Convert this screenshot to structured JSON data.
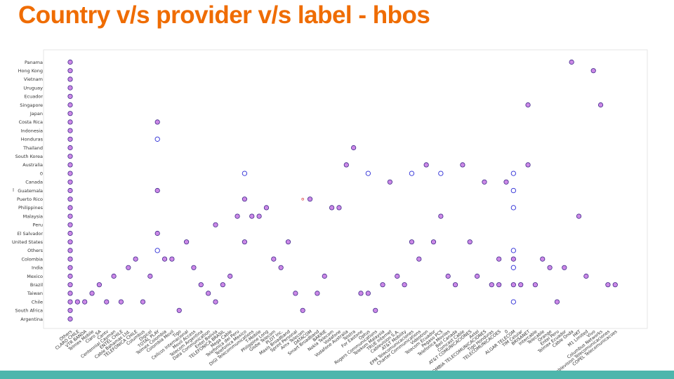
{
  "title": "Country  v/s provider v/s label - hbos",
  "colors": {
    "title": "#ef6c00",
    "footer": "#4db6ac",
    "filled_marker_fill": "#cc88e6",
    "filled_marker_stroke": "#3f2a8a",
    "open_marker_stroke": "#2b2bd6",
    "small_marker": "#e05a5a"
  },
  "chart_data": {
    "type": "scatter",
    "title": "",
    "xlabel": "",
    "ylabel": "",
    "grid": false,
    "legend": "none",
    "y_categories": [
      "Panama",
      "Hong Kong",
      "Vietnam",
      "Uruguay",
      "Ecuador",
      "Singapore",
      "Japan",
      "Costa Rica",
      "Indonesia",
      "Honduras",
      "Thailand",
      "South Korea",
      "Australia",
      "0",
      "Canada",
      "Guatemala",
      "Puerto Rico",
      "Philippines",
      "Malaysia",
      "Peru",
      "El Salvador",
      "United States",
      "Others",
      "Colombia",
      "India",
      "Mexico",
      "Brazil",
      "Taiwan",
      "Chile",
      "South Africa",
      "Argentina"
    ],
    "x_categories": [
      "Others",
      "CLARO CHILE",
      "VTR BANDA",
      "Telmex Mobile",
      "Claro SA",
      "Cantv",
      "Centennial Cayman",
      "ENTEL CHILE",
      "Cable Bahamas Ltd.",
      "TELEFONICA CHILE",
      "Columbus",
      "Digicel",
      "TOTAL PLAY",
      "Telmex Colombia",
      "Colombia Movil",
      "Tigo",
      "Cellcos Internacional",
      "Movil Access",
      "Telecom Argentina",
      "Data Communication",
      "Entel Bolivia",
      "TELEFONICA BRASIL",
      "Mega Cable",
      "Telefonica del Peru",
      "Telefonica Mexico",
      "DIGI Telecommunications",
      "T-Mobile",
      "Philippine Long",
      "Globe Telecom",
      "PLDT Inc.",
      "Maxis Broadband",
      "Sprint Personal",
      "Amx Telecom",
      "DATACOM",
      "Smart Broadband",
      "BAKRIE",
      "Nokia Telecom",
      "Vodafone",
      "Vodafone Australia",
      "Telstra",
      "For Eastone",
      "Optus",
      "Rogers Communications",
      "Telekom Malaysia",
      "TRUE Internet",
      "Cablevision S.A.",
      "AT&T Mobility",
      "EPM Telecomunicaciones",
      "Charter Communications",
      "Videotron",
      "Telecom Ecuador",
      "Pegaso PCS",
      "Telefonica Moviles",
      "Bell Canada",
      "Comcast Cable",
      "AT&T COMUNICACIONES",
      "Axtel",
      "COLOMBIA TELECOMUNICACIONES",
      "Tigo Honduras",
      "TELECOMUNICACOES",
      "0",
      "ALGAR TELECOM",
      "TIM Celular",
      "BRISANET",
      "Intercable",
      "Telecable",
      "Orange",
      "Entel Peru",
      "Telmex Ecuador",
      "Cable Onda",
      "HKT",
      "M1 Limited",
      "Vivo",
      "Columbus Networks",
      "Cablevision Telecomunicaciones",
      "COPEL Telecomunicacoes"
    ],
    "filled_points": [
      {
        "x": "Others",
        "y": "Panama"
      },
      {
        "x": "Others",
        "y": "Hong Kong"
      },
      {
        "x": "Others",
        "y": "Vietnam"
      },
      {
        "x": "Others",
        "y": "Uruguay"
      },
      {
        "x": "Others",
        "y": "Ecuador"
      },
      {
        "x": "Others",
        "y": "Singapore"
      },
      {
        "x": "Others",
        "y": "Japan"
      },
      {
        "x": "Others",
        "y": "Costa Rica"
      },
      {
        "x": "Others",
        "y": "Indonesia"
      },
      {
        "x": "Others",
        "y": "Honduras"
      },
      {
        "x": "Others",
        "y": "Thailand"
      },
      {
        "x": "Others",
        "y": "South Korea"
      },
      {
        "x": "Others",
        "y": "Australia"
      },
      {
        "x": "Others",
        "y": "0"
      },
      {
        "x": "Others",
        "y": "Canada"
      },
      {
        "x": "Others",
        "y": "Guatemala"
      },
      {
        "x": "Others",
        "y": "Puerto Rico"
      },
      {
        "x": "Others",
        "y": "Philippines"
      },
      {
        "x": "Others",
        "y": "Malaysia"
      },
      {
        "x": "Others",
        "y": "Peru"
      },
      {
        "x": "Others",
        "y": "El Salvador"
      },
      {
        "x": "Others",
        "y": "United States"
      },
      {
        "x": "Others",
        "y": "Others"
      },
      {
        "x": "Others",
        "y": "Colombia"
      },
      {
        "x": "Others",
        "y": "India"
      },
      {
        "x": "Others",
        "y": "Mexico"
      },
      {
        "x": "Others",
        "y": "Brazil"
      },
      {
        "x": "Others",
        "y": "Taiwan"
      },
      {
        "x": "Others",
        "y": "Chile"
      },
      {
        "x": "Others",
        "y": "South Africa"
      },
      {
        "x": "Others",
        "y": "Argentina"
      },
      {
        "x": "CLARO CHILE",
        "y": "Chile"
      },
      {
        "x": "VTR BANDA",
        "y": "Chile"
      },
      {
        "x": "Telmex Mobile",
        "y": "Taiwan"
      },
      {
        "x": "Claro SA",
        "y": "Brazil"
      },
      {
        "x": "Cantv",
        "y": "Chile"
      },
      {
        "x": "Centennial Cayman",
        "y": "Mexico"
      },
      {
        "x": "ENTEL CHILE",
        "y": "Chile"
      },
      {
        "x": "Cable Bahamas Ltd.",
        "y": "India"
      },
      {
        "x": "TELEFONICA CHILE",
        "y": "Colombia"
      },
      {
        "x": "Columbus",
        "y": "Chile"
      },
      {
        "x": "Digicel",
        "y": "Mexico"
      },
      {
        "x": "TOTAL PLAY",
        "y": "Costa Rica"
      },
      {
        "x": "TOTAL PLAY",
        "y": "Guatemala"
      },
      {
        "x": "TOTAL PLAY",
        "y": "El Salvador"
      },
      {
        "x": "Telmex Colombia",
        "y": "Colombia"
      },
      {
        "x": "Colombia Movil",
        "y": "Colombia"
      },
      {
        "x": "Tigo",
        "y": "South Africa"
      },
      {
        "x": "Cellcos Internacional",
        "y": "United States"
      },
      {
        "x": "Movil Access",
        "y": "India"
      },
      {
        "x": "Telecom Argentina",
        "y": "Brazil"
      },
      {
        "x": "Data Communication",
        "y": "Taiwan"
      },
      {
        "x": "Entel Bolivia",
        "y": "Peru"
      },
      {
        "x": "Entel Bolivia",
        "y": "Chile"
      },
      {
        "x": "TELEFONICA BRASIL",
        "y": "Brazil"
      },
      {
        "x": "Mega Cable",
        "y": "Mexico"
      },
      {
        "x": "Telefonica del Peru",
        "y": "Malaysia"
      },
      {
        "x": "Telefonica Mexico",
        "y": "Puerto Rico"
      },
      {
        "x": "Telefonica Mexico",
        "y": "United States"
      },
      {
        "x": "DIGI Telecommunications",
        "y": "Malaysia"
      },
      {
        "x": "T-Mobile",
        "y": "Malaysia"
      },
      {
        "x": "Philippine Long",
        "y": "Philippines"
      },
      {
        "x": "Globe Telecom",
        "y": "Colombia"
      },
      {
        "x": "PLDT Inc.",
        "y": "India"
      },
      {
        "x": "Maxis Broadband",
        "y": "United States"
      },
      {
        "x": "Sprint Personal",
        "y": "Taiwan"
      },
      {
        "x": "Amx Telecom",
        "y": "South Africa"
      },
      {
        "x": "DATACOM",
        "y": "Puerto Rico"
      },
      {
        "x": "Smart Broadband",
        "y": "Taiwan"
      },
      {
        "x": "BAKRIE",
        "y": "Mexico"
      },
      {
        "x": "Nokia Telecom",
        "y": "Philippines"
      },
      {
        "x": "Vodafone",
        "y": "Philippines"
      },
      {
        "x": "Vodafone Australia",
        "y": "Australia"
      },
      {
        "x": "Telstra",
        "y": "Thailand"
      },
      {
        "x": "For Eastone",
        "y": "Taiwan"
      },
      {
        "x": "Optus",
        "y": "Taiwan"
      },
      {
        "x": "Rogers Communications",
        "y": "South Africa"
      },
      {
        "x": "Telekom Malaysia",
        "y": "Brazil"
      },
      {
        "x": "TRUE Internet",
        "y": "Canada"
      },
      {
        "x": "Cablevision S.A.",
        "y": "Mexico"
      },
      {
        "x": "AT&T Mobility",
        "y": "Brazil"
      },
      {
        "x": "EPM Telecomunicaciones",
        "y": "United States"
      },
      {
        "x": "Charter Communications",
        "y": "Colombia"
      },
      {
        "x": "Videotron",
        "y": "Australia"
      },
      {
        "x": "Telecom Ecuador",
        "y": "United States"
      },
      {
        "x": "Pegaso PCS",
        "y": "Malaysia"
      },
      {
        "x": "Telefonica Moviles",
        "y": "Mexico"
      },
      {
        "x": "Bell Canada",
        "y": "Brazil"
      },
      {
        "x": "Comcast Cable",
        "y": "Australia"
      },
      {
        "x": "AT&T COMUNICACIONES",
        "y": "United States"
      },
      {
        "x": "Axtel",
        "y": "Mexico"
      },
      {
        "x": "COLOMBIA TELECOMUNICACIONES",
        "y": "Canada"
      },
      {
        "x": "Tigo Honduras",
        "y": "Brazil"
      },
      {
        "x": "TELECOMUNICACOES",
        "y": "Colombia"
      },
      {
        "x": "TELECOMUNICACOES",
        "y": "Brazil"
      },
      {
        "x": "0",
        "y": "Canada"
      },
      {
        "x": "ALGAR TELECOM",
        "y": "Colombia"
      },
      {
        "x": "ALGAR TELECOM",
        "y": "Brazil"
      },
      {
        "x": "TIM Celular",
        "y": "Brazil"
      },
      {
        "x": "BRISANET",
        "y": "Singapore"
      },
      {
        "x": "BRISANET",
        "y": "Australia"
      },
      {
        "x": "Intercable",
        "y": "Brazil"
      },
      {
        "x": "Telecable",
        "y": "Colombia"
      },
      {
        "x": "Orange",
        "y": "India"
      },
      {
        "x": "Entel Peru",
        "y": "Chile"
      },
      {
        "x": "Telmex Ecuador",
        "y": "India"
      },
      {
        "x": "Cable Onda",
        "y": "Panama"
      },
      {
        "x": "HKT",
        "y": "Malaysia"
      },
      {
        "x": "M1 Limited",
        "y": "Mexico"
      },
      {
        "x": "Vivo",
        "y": "Hong Kong"
      },
      {
        "x": "Columbus Networks",
        "y": "Singapore"
      },
      {
        "x": "Cablevision Telecomunicaciones",
        "y": "Brazil"
      },
      {
        "x": "COPEL Telecomunicacoes",
        "y": "Brazil"
      }
    ],
    "open_points": [
      {
        "x": "TOTAL PLAY",
        "y": "Honduras"
      },
      {
        "x": "TOTAL PLAY",
        "y": "Others"
      },
      {
        "x": "Telefonica Mexico",
        "y": "0"
      },
      {
        "x": "Optus",
        "y": "0"
      },
      {
        "x": "EPM Telecomunicaciones",
        "y": "0"
      },
      {
        "x": "Pegaso PCS",
        "y": "0"
      },
      {
        "x": "ALGAR TELECOM",
        "y": "0"
      },
      {
        "x": "ALGAR TELECOM",
        "y": "Guatemala"
      },
      {
        "x": "ALGAR TELECOM",
        "y": "Philippines"
      },
      {
        "x": "ALGAR TELECOM",
        "y": "Others"
      },
      {
        "x": "ALGAR TELECOM",
        "y": "India"
      },
      {
        "x": "ALGAR TELECOM",
        "y": "Chile"
      }
    ],
    "small_points": [
      {
        "x": "Amx Telecom",
        "y": "Puerto Rico"
      }
    ]
  }
}
